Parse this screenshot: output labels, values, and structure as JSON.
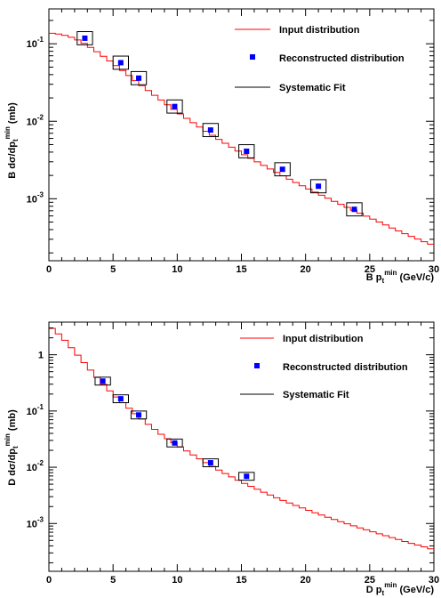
{
  "colors": {
    "input": "#ff0000",
    "reco": "#0000ff",
    "fit": "#000000",
    "frame": "#000000"
  },
  "chart_data": [
    {
      "type": "line",
      "panel": "top",
      "xlim": [
        0,
        30
      ],
      "ylim_log10": [
        -3.8,
        -0.55
      ],
      "log_y": true,
      "ylabel": {
        "main": "B dσ/dp",
        "sub": "t",
        "sup": "min",
        "unit": " (mb)"
      },
      "xlabel": {
        "main": "B p",
        "sub": "t",
        "sup": "min",
        "unit": " (GeV/c)"
      },
      "x_ticks": [
        "0",
        "5",
        "10",
        "15",
        "20",
        "25",
        "30"
      ],
      "y_ticks": [
        {
          "value": 0.1,
          "base": "10",
          "exp": "-1"
        },
        {
          "value": 0.01,
          "base": "10",
          "exp": "-2"
        },
        {
          "value": 0.001,
          "base": "10",
          "exp": "-3"
        }
      ],
      "legend": [
        "Input distribution",
        "Reconstructed distribution",
        "Systematic Fit"
      ],
      "input_curve": {
        "x": [
          0,
          1,
          2,
          3,
          4,
          5,
          6,
          7,
          8,
          9,
          10,
          11,
          12,
          13,
          14,
          15,
          16,
          17,
          18,
          19,
          20,
          21,
          22,
          23,
          24,
          25,
          26,
          27,
          28,
          29,
          30
        ],
        "y": [
          0.138,
          0.132,
          0.118,
          0.096,
          0.074,
          0.056,
          0.042,
          0.031,
          0.0232,
          0.0175,
          0.0133,
          0.0102,
          0.0079,
          0.0062,
          0.0049,
          0.0039,
          0.00315,
          0.00255,
          0.00208,
          0.0017,
          0.0014,
          0.00116,
          0.00097,
          0.00081,
          0.00068,
          0.00057,
          0.00048,
          0.0004,
          0.00034,
          0.00029,
          0.00025
        ]
      },
      "reconstructed": [
        {
          "x": 2.8,
          "y": 0.118
        },
        {
          "x": 5.6,
          "y": 0.057
        },
        {
          "x": 7.0,
          "y": 0.036
        },
        {
          "x": 9.8,
          "y": 0.0155
        },
        {
          "x": 12.6,
          "y": 0.0077
        },
        {
          "x": 15.4,
          "y": 0.0041
        },
        {
          "x": 18.2,
          "y": 0.0024
        },
        {
          "x": 21.0,
          "y": 0.00145
        },
        {
          "x": 23.8,
          "y": 0.00073
        }
      ],
      "box_dlog": 0.085,
      "box_dx": 0.6
    },
    {
      "type": "line",
      "panel": "bottom",
      "xlim": [
        0,
        30
      ],
      "ylim_log10": [
        -3.85,
        0.58
      ],
      "log_y": true,
      "ylabel": {
        "main": "D dσ/dp",
        "sub": "t",
        "sup": "min",
        "unit": " (mb)"
      },
      "xlabel": {
        "main": "D p",
        "sub": "t",
        "sup": "min",
        "unit": " (GeV/c)"
      },
      "x_ticks": [
        "0",
        "5",
        "10",
        "15",
        "20",
        "25",
        "30"
      ],
      "y_ticks": [
        {
          "value": 1,
          "base": "1",
          "exp": ""
        },
        {
          "value": 0.1,
          "base": "10",
          "exp": "-1"
        },
        {
          "value": 0.01,
          "base": "10",
          "exp": "-2"
        },
        {
          "value": 0.001,
          "base": "10",
          "exp": "-3"
        }
      ],
      "legend": [
        "Input distribution",
        "Reconstructed distribution",
        "Systematic Fit"
      ],
      "input_curve": {
        "x": [
          0,
          1,
          2,
          3,
          4,
          5,
          6,
          7,
          8,
          9,
          10,
          11,
          12,
          13,
          14,
          15,
          16,
          17,
          18,
          19,
          20,
          21,
          22,
          23,
          24,
          25,
          26,
          27,
          28,
          29,
          30
        ],
        "y": [
          3.3,
          2.1,
          1.15,
          0.62,
          0.34,
          0.2,
          0.125,
          0.08,
          0.052,
          0.035,
          0.025,
          0.018,
          0.013,
          0.0096,
          0.0072,
          0.0055,
          0.0043,
          0.0034,
          0.0027,
          0.0022,
          0.0018,
          0.00148,
          0.00123,
          0.00103,
          0.00087,
          0.00074,
          0.00063,
          0.00054,
          0.00046,
          0.0004,
          0.00034
        ]
      },
      "reconstructed": [
        {
          "x": 4.2,
          "y": 0.34
        },
        {
          "x": 5.6,
          "y": 0.165
        },
        {
          "x": 7.0,
          "y": 0.085
        },
        {
          "x": 9.8,
          "y": 0.027
        },
        {
          "x": 12.6,
          "y": 0.012
        },
        {
          "x": 15.4,
          "y": 0.0069
        }
      ],
      "box_dlog": 0.07,
      "box_dx": 0.6
    }
  ]
}
